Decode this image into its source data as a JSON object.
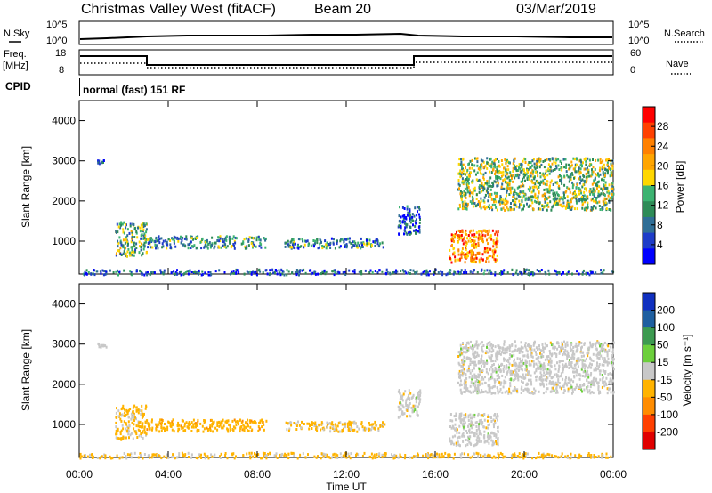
{
  "header": {
    "title": "Christmas Valley West (fitACF)",
    "beam": "Beam 20",
    "date": "03/Mar/2019"
  },
  "info_strip": {
    "nsky_label": "N.Sky",
    "nsky_ticks": [
      "10^5",
      "10^0"
    ],
    "nsearch_label": "N.Search",
    "nsearch_ticks": [
      "10^5",
      "10^0"
    ],
    "freq_label": "Freq.",
    "freq_unit": "[MHz]",
    "freq_ticks": [
      "18",
      "8"
    ],
    "nave_label": "Nave",
    "nave_ticks": [
      "60",
      "0"
    ],
    "cpid_label": "CPID",
    "cpid_text": "normal (fast) 151 RF"
  },
  "colors": {
    "scale": [
      "#0000ff",
      "#1a3fb5",
      "#2f6a9c",
      "#2f8a5a",
      "#5ab24f",
      "#c8c8c8",
      "#ffcc00",
      "#ffa500",
      "#ff6a00",
      "#ff2000",
      "#e00000"
    ],
    "ground": "#bebebe"
  },
  "chart_data": [
    {
      "type": "heatmap",
      "name": "power",
      "title": "",
      "xlabel": "Time UT",
      "ylabel": "Slant Range [km]",
      "xlim": [
        0,
        24
      ],
      "ylim": [
        180,
        4500
      ],
      "x_ticks": [
        "00:00",
        "04:00",
        "08:00",
        "12:00",
        "16:00",
        "20:00",
        "00:00"
      ],
      "y_ticks": [
        "1000",
        "2000",
        "3000",
        "4000"
      ],
      "colorbar": {
        "label": "Power [dB]",
        "ticks": [
          "4",
          "8",
          "12",
          "16",
          "20",
          "24",
          "28"
        ],
        "range": [
          0,
          30
        ],
        "colors": [
          "#0000ff",
          "#1e3cc8",
          "#2f6e96",
          "#2e8b57",
          "#3cb371",
          "#ffd700",
          "#ffa500",
          "#ff8000",
          "#ff4000",
          "#ff0000"
        ]
      },
      "scatter_regions": [
        {
          "t0": 0.0,
          "t1": 24.0,
          "r0": 190,
          "r1": 320,
          "level": 6
        },
        {
          "t0": 1.6,
          "t1": 3.0,
          "r0": 650,
          "r1": 1500,
          "level": 12
        },
        {
          "t0": 3.0,
          "t1": 8.4,
          "r0": 850,
          "r1": 1150,
          "level": 10
        },
        {
          "t0": 9.2,
          "t1": 13.7,
          "r0": 850,
          "r1": 1100,
          "level": 9
        },
        {
          "t0": 14.3,
          "t1": 15.3,
          "r0": 1200,
          "r1": 1900,
          "level": 6
        },
        {
          "t0": 16.6,
          "t1": 18.8,
          "r0": 500,
          "r1": 1300,
          "level": 22
        },
        {
          "t0": 17.0,
          "t1": 24.0,
          "r0": 1800,
          "r1": 3100,
          "level": 14
        },
        {
          "t0": 0.8,
          "t1": 1.2,
          "r0": 2950,
          "r1": 3050,
          "level": 6
        }
      ]
    },
    {
      "type": "heatmap",
      "name": "velocity",
      "title": "",
      "xlabel": "Time UT",
      "ylabel": "Slant Range [km]",
      "xlim": [
        0,
        24
      ],
      "ylim": [
        180,
        4500
      ],
      "x_ticks": [
        "00:00",
        "04:00",
        "08:00",
        "12:00",
        "16:00",
        "20:00",
        "00:00"
      ],
      "y_ticks": [
        "1000",
        "2000",
        "3000",
        "4000"
      ],
      "colorbar": {
        "label": "Velocity [m s⁻¹]",
        "ticks": [
          "200",
          "100",
          "50",
          "15",
          "-15",
          "-50",
          "-100",
          "-200"
        ],
        "range": [
          -250,
          250
        ],
        "colors": [
          "#e00000",
          "#ff4000",
          "#ff8c00",
          "#ffb300",
          "#c8c8c8",
          "#6ccf3c",
          "#3c9a50",
          "#1f5fa0",
          "#1030c0"
        ]
      },
      "scatter_regions": [
        {
          "t0": 0.0,
          "t1": 24.0,
          "r0": 190,
          "r1": 320,
          "vel": -40
        },
        {
          "t0": 1.6,
          "t1": 3.0,
          "r0": 650,
          "r1": 1500,
          "vel": -40
        },
        {
          "t0": 3.0,
          "t1": 8.4,
          "r0": 850,
          "r1": 1150,
          "vel": -60
        },
        {
          "t0": 9.2,
          "t1": 13.7,
          "r0": 850,
          "r1": 1100,
          "vel": -40
        },
        {
          "t0": 14.3,
          "t1": 15.3,
          "r0": 1200,
          "r1": 1900,
          "vel": 0
        },
        {
          "t0": 16.6,
          "t1": 18.8,
          "r0": 500,
          "r1": 1300,
          "vel": 0
        },
        {
          "t0": 17.0,
          "t1": 24.0,
          "r0": 1800,
          "r1": 3100,
          "vel": 0
        },
        {
          "t0": 0.8,
          "t1": 1.2,
          "r0": 2950,
          "r1": 3050,
          "vel": 0
        }
      ]
    }
  ]
}
